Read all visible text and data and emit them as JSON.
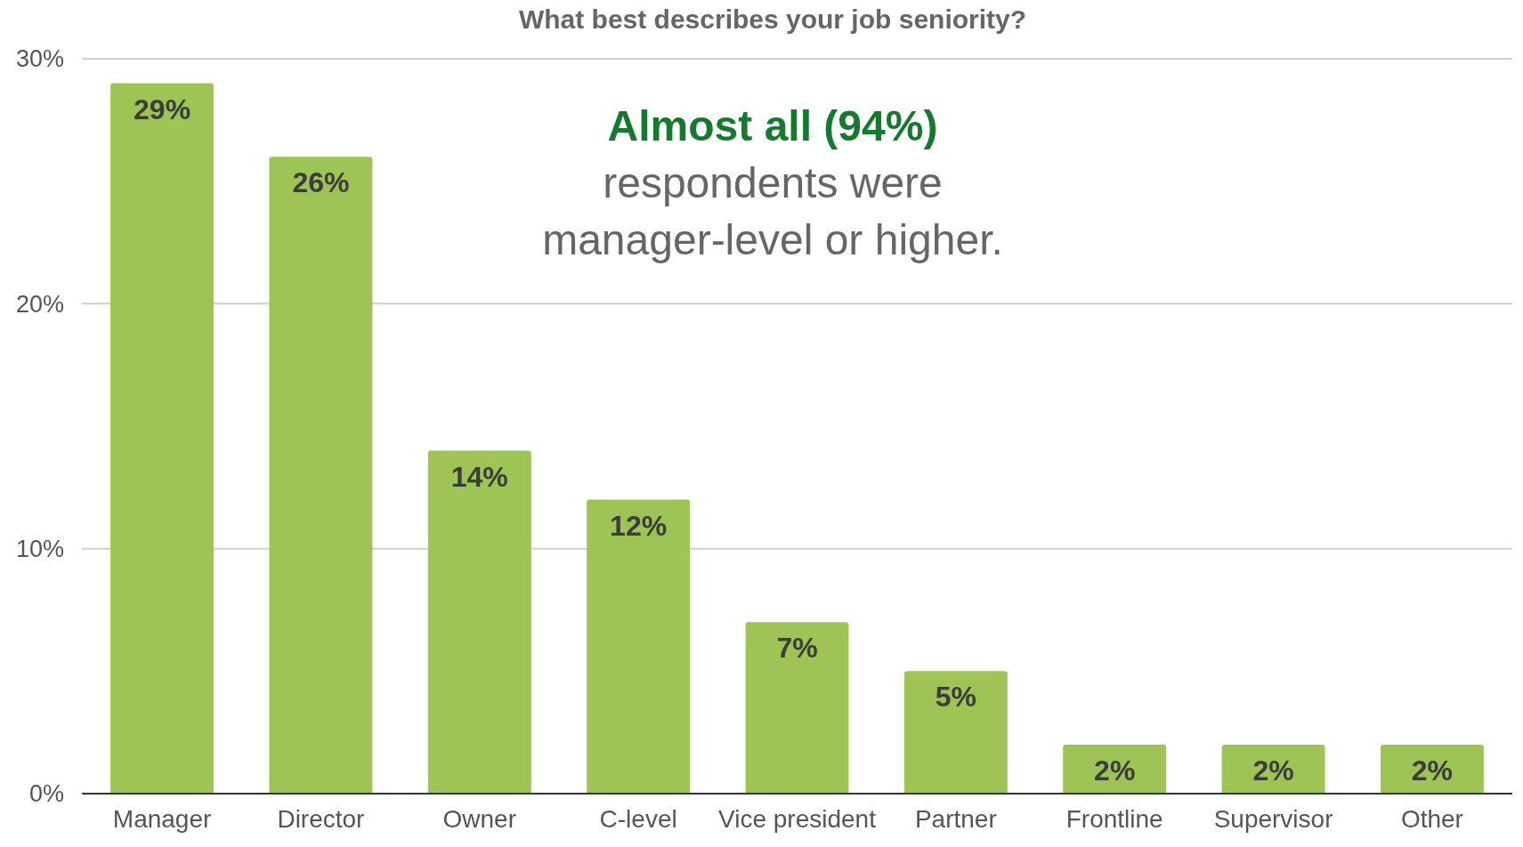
{
  "chart_data": {
    "type": "bar",
    "title": "What best describes your job seniority?",
    "categories": [
      "Manager",
      "Director",
      "Owner",
      "C-level",
      "Vice president",
      "Partner",
      "Frontline",
      "Supervisor",
      "Other"
    ],
    "values": [
      29,
      26,
      14,
      12,
      7,
      5,
      2,
      2,
      2
    ],
    "value_labels": [
      "29%",
      "26%",
      "14%",
      "12%",
      "7%",
      "5%",
      "2%",
      "2%",
      "2%"
    ],
    "color": "#9dc455",
    "ylim": [
      0,
      30
    ],
    "yticks": [
      {
        "value": 0,
        "label": "0%"
      },
      {
        "value": 10,
        "label": "10%"
      },
      {
        "value": 20,
        "label": "20%"
      },
      {
        "value": 30,
        "label": "30%"
      }
    ],
    "grid": "y",
    "annotations": [
      "Almost all (94%)",
      "respondents were manager-level or higher."
    ]
  }
}
